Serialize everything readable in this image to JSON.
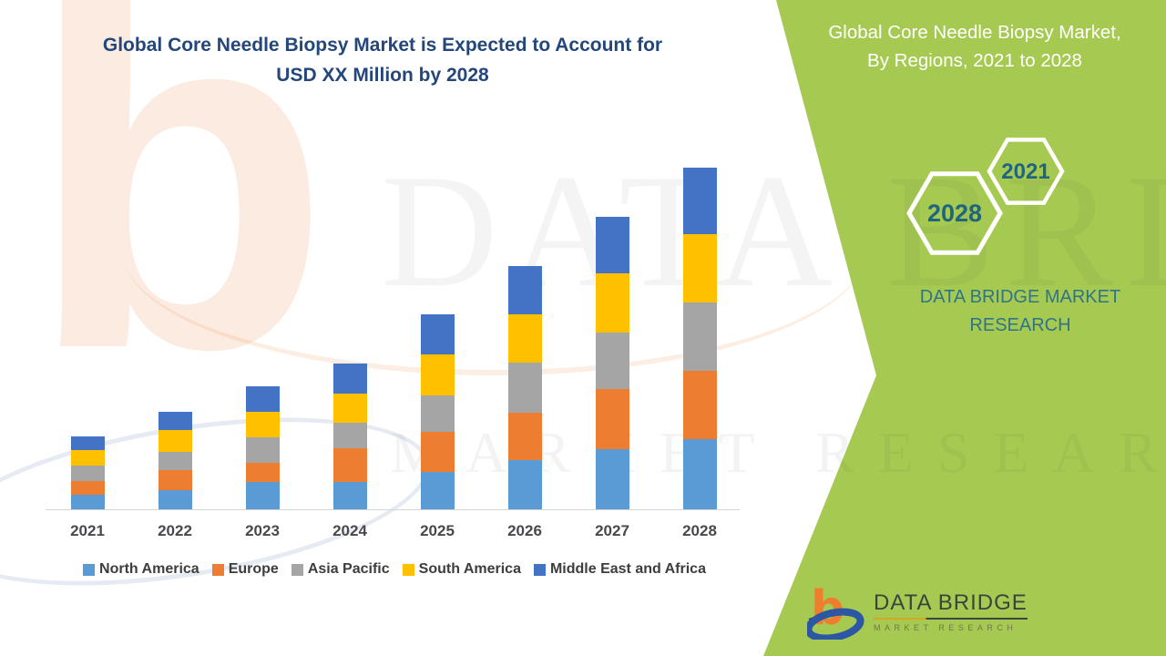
{
  "header": {
    "title_line1": "Global Core Needle Biopsy Market is Expected to Account for",
    "title_line2": "USD XX Million by 2028"
  },
  "side_panel": {
    "heading_line1": "Global Core Needle Biopsy Market,",
    "heading_line2": "By Regions, 2021 to 2028",
    "hexagons": {
      "back": "2028",
      "front": "2021"
    },
    "brand_line1": "DATA BRIDGE MARKET",
    "brand_line2": "RESEARCH",
    "background_color": "#A6CA51",
    "heading_color": "#FFFFFF",
    "hexagon_text_color": "#1F6580"
  },
  "footer_logo": {
    "name": "DATA BRIDGE",
    "tagline": "MARKET RESEARCH"
  },
  "watermark": {
    "letter": "b",
    "line1": "DATA BRIDGE",
    "line2": "MARKET RESEARCH"
  },
  "chart_data": {
    "type": "bar",
    "stacked": true,
    "title": "Global Core Needle Biopsy Market is Expected to Account for USD XX Million by 2028",
    "categories": [
      "2021",
      "2022",
      "2023",
      "2024",
      "2025",
      "2026",
      "2027",
      "2028"
    ],
    "series": [
      {
        "name": "North America",
        "color": "#5B9BD5",
        "values": [
          16,
          21,
          30,
          30,
          41,
          54,
          66,
          77
        ]
      },
      {
        "name": "Europe",
        "color": "#ED7D31",
        "values": [
          15,
          22,
          21,
          37,
          44,
          52,
          66,
          75
        ]
      },
      {
        "name": "Asia Pacific",
        "color": "#A5A5A5",
        "values": [
          17,
          20,
          28,
          28,
          40,
          55,
          62,
          75
        ]
      },
      {
        "name": "South America",
        "color": "#FFC000",
        "values": [
          17,
          24,
          28,
          32,
          45,
          53,
          65,
          75
        ]
      },
      {
        "name": "Middle East and Africa",
        "color": "#4472C4",
        "values": [
          15,
          20,
          28,
          33,
          44,
          53,
          62,
          73
        ]
      }
    ],
    "xlabel": "",
    "ylabel": "",
    "units": "USD Million (values shown masked as XX)",
    "y_axis_visible": false,
    "grid": false,
    "legend_position": "bottom"
  }
}
